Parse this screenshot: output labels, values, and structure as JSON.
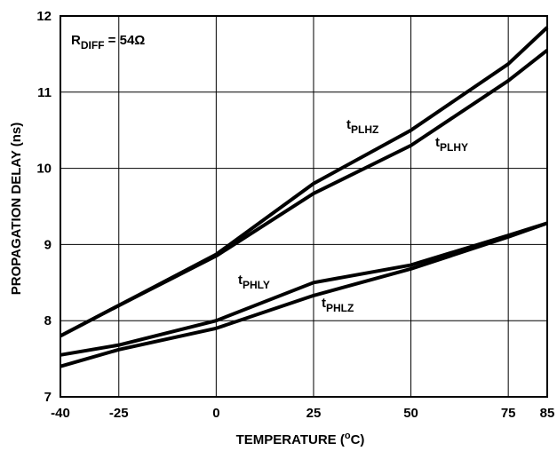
{
  "chart_data": {
    "type": "line",
    "xlabel": "TEMPERATURE (°C)",
    "xlabel_parts": {
      "main": "TEMPERATURE (",
      "sup": "o",
      "tail": "C)"
    },
    "ylabel": "PROPAGATION DELAY (ns)",
    "xlim": [
      -40,
      85
    ],
    "ylim": [
      7,
      12
    ],
    "x_ticks": [
      -40,
      -25,
      0,
      25,
      50,
      75,
      85
    ],
    "y_ticks": [
      7,
      8,
      9,
      10,
      11,
      12
    ],
    "x_gridlines": [
      -25,
      0,
      25,
      50,
      75
    ],
    "y_gridlines": [
      8,
      9,
      10,
      11
    ],
    "grid": true,
    "condition_label": {
      "main": "R",
      "sub": "DIFF",
      "tail": " = 54Ω"
    },
    "series": [
      {
        "name": "tPLHZ",
        "label_main": "t",
        "label_sub": "PLHZ",
        "x": [
          -40,
          -25,
          0,
          25,
          50,
          75,
          85
        ],
        "y": [
          7.8,
          8.2,
          8.87,
          9.8,
          10.5,
          11.37,
          11.85
        ]
      },
      {
        "name": "tPLHY",
        "label_main": "t",
        "label_sub": "PLHY",
        "x": [
          -40,
          -25,
          0,
          25,
          50,
          75,
          85
        ],
        "y": [
          7.8,
          8.2,
          8.85,
          9.67,
          10.3,
          11.15,
          11.55
        ]
      },
      {
        "name": "tPHLY",
        "label_main": "t",
        "label_sub": "PHLY",
        "x": [
          -40,
          -25,
          0,
          25,
          50,
          75,
          85
        ],
        "y": [
          7.55,
          7.68,
          8.0,
          8.5,
          8.73,
          9.12,
          9.28
        ]
      },
      {
        "name": "tPHLZ",
        "label_main": "t",
        "label_sub": "PHLZ",
        "x": [
          -40,
          -25,
          0,
          25,
          50,
          75,
          85
        ],
        "y": [
          7.4,
          7.62,
          7.9,
          8.33,
          8.68,
          9.1,
          9.28
        ]
      }
    ]
  }
}
